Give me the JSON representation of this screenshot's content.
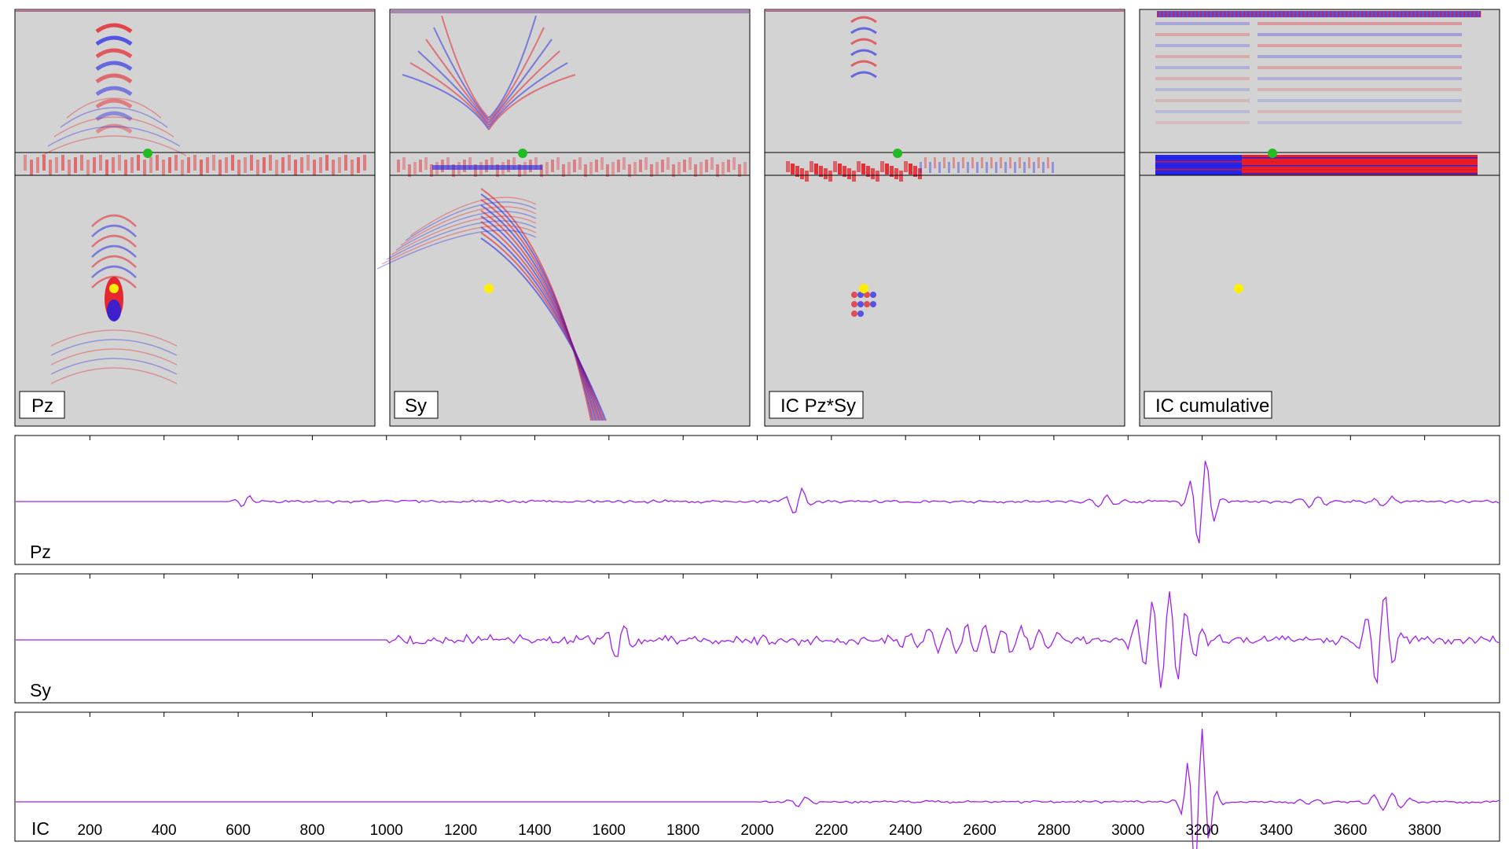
{
  "colors": {
    "background_gray": "#d3d3d3",
    "positive": "#e8141e",
    "negative": "#1e1ee8",
    "trace": "#a020f0",
    "receiver_marker": "#22bb22",
    "source_marker": "#ffee00"
  },
  "panels": [
    {
      "label": "Pz"
    },
    {
      "label": "Sy"
    },
    {
      "label": "IC Pz*Sy"
    },
    {
      "label": "IC cumulative"
    }
  ],
  "chart_data": {
    "type": "line",
    "x_axis": {
      "ticks": [
        200,
        400,
        600,
        800,
        1000,
        1200,
        1400,
        1600,
        1800,
        2000,
        2200,
        2400,
        2600,
        2800,
        3000,
        3200,
        3400,
        3600,
        3800
      ],
      "range": [
        0,
        4000
      ]
    },
    "series": [
      {
        "name": "Pz",
        "bursts": [
          {
            "t": 620,
            "amp": 0.12,
            "width": 18,
            "freq": 0.022
          },
          {
            "t": 2110,
            "amp": 0.32,
            "width": 22,
            "freq": 0.02
          },
          {
            "t": 2930,
            "amp": 0.12,
            "width": 30,
            "freq": 0.02
          },
          {
            "t": 3200,
            "amp": 1.0,
            "width": 25,
            "freq": 0.022
          },
          {
            "t": 3500,
            "amp": 0.13,
            "width": 35,
            "freq": 0.02
          },
          {
            "t": 3700,
            "amp": 0.1,
            "width": 30,
            "freq": 0.02
          }
        ],
        "noise_start": 580,
        "noise_amp": 0.035
      },
      {
        "name": "Sy",
        "bursts": [
          {
            "t": 1630,
            "amp": 0.38,
            "width": 25,
            "freq": 0.02
          },
          {
            "t": 2600,
            "amp": 0.28,
            "width": 140,
            "freq": 0.02
          },
          {
            "t": 3100,
            "amp": 1.0,
            "width": 55,
            "freq": 0.022
          },
          {
            "t": 3680,
            "amp": 1.0,
            "width": 30,
            "freq": 0.02
          }
        ],
        "noise_start": 1000,
        "noise_amp": 0.12
      },
      {
        "name": "IC",
        "bursts": [
          {
            "t": 2120,
            "amp": 0.07,
            "width": 20,
            "freq": 0.02
          },
          {
            "t": 3190,
            "amp": 1.0,
            "width": 25,
            "freq": 0.025
          },
          {
            "t": 3700,
            "amp": 0.12,
            "width": 40,
            "freq": 0.02
          },
          {
            "t": 3500,
            "amp": 0.03,
            "width": 40,
            "freq": 0.02
          }
        ],
        "noise_start": 2000,
        "noise_amp": 0.02
      }
    ]
  }
}
